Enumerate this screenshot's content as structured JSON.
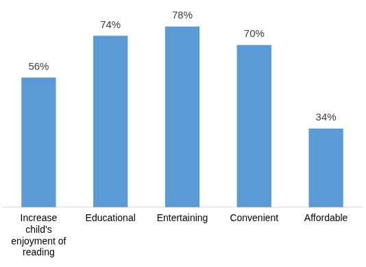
{
  "chart_data": {
    "type": "bar",
    "categories": [
      "Increase child's enjoyment of reading",
      "Educational",
      "Entertaining",
      "Convenient",
      "Affordable"
    ],
    "values": [
      56,
      74,
      78,
      70,
      34
    ],
    "value_labels": [
      "56%",
      "74%",
      "78%",
      "70%",
      "34%"
    ],
    "color": "#5b9bd5",
    "grid": false,
    "data_labels": true,
    "tick_labels": "x"
  }
}
